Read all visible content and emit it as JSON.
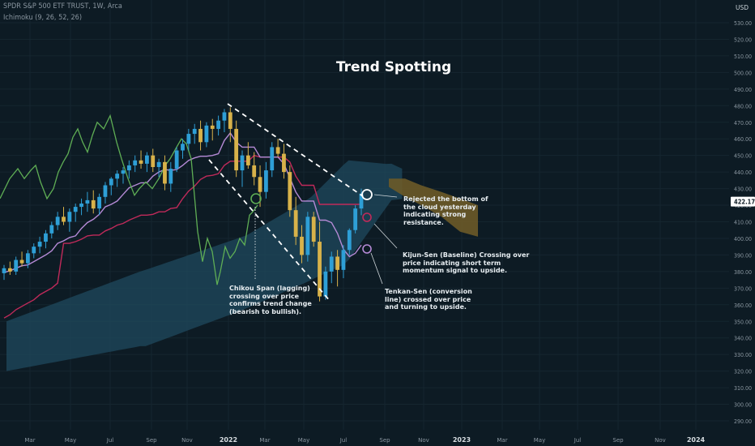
{
  "header": {
    "symbol_line": "SPDR S&P 500 ETF TRUST, 1W, Arca",
    "indicator_line": "Ichimoku (9, 26, 52, 26)"
  },
  "currency_label": "USD",
  "last_price_label": "422.17",
  "annotations": {
    "rejected": [
      "Rejected the bottom of",
      "the cloud yesterday",
      "indicating strong",
      "resistance."
    ],
    "kijun": [
      "Kijun-Sen (Baseline) Crossing over",
      "price indicating short term",
      "momentum signal to upside."
    ],
    "tenkan": [
      "Tenkan-Sen (conversion",
      "line) crossed over price",
      "and turning to upside."
    ],
    "chikou": [
      "Chikou Span (lagging)",
      "crossing over price",
      "confirms trend change",
      "(bearish to bullish)."
    ]
  },
  "colors": {
    "background": "#0d1b24",
    "up_candle": "#2e9fd6",
    "down_candle": "#d8b24a",
    "tenkan": "#b58ad6",
    "kijun": "#c02a5a",
    "chikou": "#5fae55",
    "cloud_bear": "#1f4a5e",
    "cloud_bull": "#6b5a28",
    "trend_lines": "#ffffff"
  },
  "chart_data": {
    "type": "candlestick",
    "title": "Trend Spotting",
    "y_axis": {
      "unit": "USD",
      "ylim": [
        285,
        535
      ],
      "ticks": [
        290,
        300,
        310,
        320,
        330,
        340,
        350,
        360,
        370,
        380,
        390,
        400,
        410,
        420,
        430,
        440,
        450,
        460,
        470,
        480,
        490,
        500,
        510,
        520,
        530
      ],
      "tick_labels": [
        "290.00",
        "300.00",
        "310.00",
        "320.00",
        "330.00",
        "340.00",
        "350.00",
        "360.00",
        "370.00",
        "380.00",
        "390.00",
        "400.00",
        "410.00",
        "420.00",
        "430.00",
        "440.00",
        "450.00",
        "460.00",
        "470.00",
        "480.00",
        "490.00",
        "500.00",
        "510.00",
        "520.00",
        "530.00"
      ]
    },
    "x_axis": {
      "tick_labels": [
        "Mar",
        "May",
        "Jul",
        "Sep",
        "Nov",
        "2022",
        "Mar",
        "May",
        "Jul",
        "Sep",
        "Nov",
        "2023",
        "Mar",
        "May",
        "Jul",
        "Sep",
        "Nov",
        "2024"
      ],
      "bold_labels": [
        "2022",
        "2023",
        "2024"
      ]
    },
    "last_price": 422.17,
    "ohlc_weekly_approx": [
      {
        "o": 379,
        "h": 384,
        "l": 375,
        "c": 382
      },
      {
        "o": 382,
        "h": 386,
        "l": 378,
        "c": 380
      },
      {
        "o": 380,
        "h": 389,
        "l": 378,
        "c": 387
      },
      {
        "o": 387,
        "h": 392,
        "l": 383,
        "c": 385
      },
      {
        "o": 385,
        "h": 393,
        "l": 382,
        "c": 391
      },
      {
        "o": 391,
        "h": 397,
        "l": 388,
        "c": 395
      },
      {
        "o": 395,
        "h": 401,
        "l": 391,
        "c": 398
      },
      {
        "o": 398,
        "h": 405,
        "l": 394,
        "c": 403
      },
      {
        "o": 403,
        "h": 410,
        "l": 400,
        "c": 408
      },
      {
        "o": 408,
        "h": 416,
        "l": 405,
        "c": 413
      },
      {
        "o": 413,
        "h": 419,
        "l": 408,
        "c": 410
      },
      {
        "o": 410,
        "h": 418,
        "l": 404,
        "c": 416
      },
      {
        "o": 416,
        "h": 421,
        "l": 410,
        "c": 419
      },
      {
        "o": 419,
        "h": 424,
        "l": 414,
        "c": 421
      },
      {
        "o": 421,
        "h": 428,
        "l": 416,
        "c": 423
      },
      {
        "o": 423,
        "h": 429,
        "l": 415,
        "c": 418
      },
      {
        "o": 418,
        "h": 427,
        "l": 414,
        "c": 425
      },
      {
        "o": 425,
        "h": 434,
        "l": 421,
        "c": 432
      },
      {
        "o": 432,
        "h": 437,
        "l": 426,
        "c": 436
      },
      {
        "o": 436,
        "h": 441,
        "l": 431,
        "c": 439
      },
      {
        "o": 439,
        "h": 443,
        "l": 433,
        "c": 441
      },
      {
        "o": 441,
        "h": 447,
        "l": 436,
        "c": 444
      },
      {
        "o": 444,
        "h": 450,
        "l": 440,
        "c": 447
      },
      {
        "o": 447,
        "h": 453,
        "l": 442,
        "c": 445
      },
      {
        "o": 445,
        "h": 452,
        "l": 440,
        "c": 450
      },
      {
        "o": 450,
        "h": 454,
        "l": 440,
        "c": 443
      },
      {
        "o": 443,
        "h": 448,
        "l": 437,
        "c": 446
      },
      {
        "o": 446,
        "h": 450,
        "l": 429,
        "c": 433
      },
      {
        "o": 433,
        "h": 446,
        "l": 428,
        "c": 442
      },
      {
        "o": 442,
        "h": 455,
        "l": 440,
        "c": 453
      },
      {
        "o": 453,
        "h": 460,
        "l": 448,
        "c": 457
      },
      {
        "o": 457,
        "h": 466,
        "l": 453,
        "c": 463
      },
      {
        "o": 463,
        "h": 469,
        "l": 457,
        "c": 466
      },
      {
        "o": 466,
        "h": 471,
        "l": 453,
        "c": 458
      },
      {
        "o": 458,
        "h": 470,
        "l": 455,
        "c": 468
      },
      {
        "o": 468,
        "h": 472,
        "l": 459,
        "c": 466
      },
      {
        "o": 466,
        "h": 474,
        "l": 462,
        "c": 471
      },
      {
        "o": 471,
        "h": 478,
        "l": 464,
        "c": 476
      },
      {
        "o": 476,
        "h": 479,
        "l": 458,
        "c": 466
      },
      {
        "o": 466,
        "h": 471,
        "l": 437,
        "c": 441
      },
      {
        "o": 441,
        "h": 453,
        "l": 431,
        "c": 450
      },
      {
        "o": 450,
        "h": 458,
        "l": 442,
        "c": 444
      },
      {
        "o": 444,
        "h": 452,
        "l": 432,
        "c": 437
      },
      {
        "o": 437,
        "h": 444,
        "l": 419,
        "c": 428
      },
      {
        "o": 428,
        "h": 446,
        "l": 424,
        "c": 441
      },
      {
        "o": 441,
        "h": 458,
        "l": 437,
        "c": 455
      },
      {
        "o": 455,
        "h": 460,
        "l": 449,
        "c": 451
      },
      {
        "o": 451,
        "h": 457,
        "l": 436,
        "c": 440
      },
      {
        "o": 440,
        "h": 444,
        "l": 413,
        "c": 417
      },
      {
        "o": 417,
        "h": 425,
        "l": 396,
        "c": 401
      },
      {
        "o": 401,
        "h": 408,
        "l": 385,
        "c": 390
      },
      {
        "o": 390,
        "h": 416,
        "l": 386,
        "c": 413
      },
      {
        "o": 413,
        "h": 416,
        "l": 395,
        "c": 398
      },
      {
        "o": 398,
        "h": 410,
        "l": 362,
        "c": 365
      },
      {
        "o": 365,
        "h": 383,
        "l": 363,
        "c": 380
      },
      {
        "o": 380,
        "h": 392,
        "l": 373,
        "c": 389
      },
      {
        "o": 389,
        "h": 393,
        "l": 371,
        "c": 381
      },
      {
        "o": 381,
        "h": 396,
        "l": 376,
        "c": 393
      },
      {
        "o": 393,
        "h": 406,
        "l": 390,
        "c": 405
      },
      {
        "o": 405,
        "h": 420,
        "l": 403,
        "c": 418
      },
      {
        "o": 418,
        "h": 430,
        "l": 414,
        "c": 427
      }
    ]
  }
}
